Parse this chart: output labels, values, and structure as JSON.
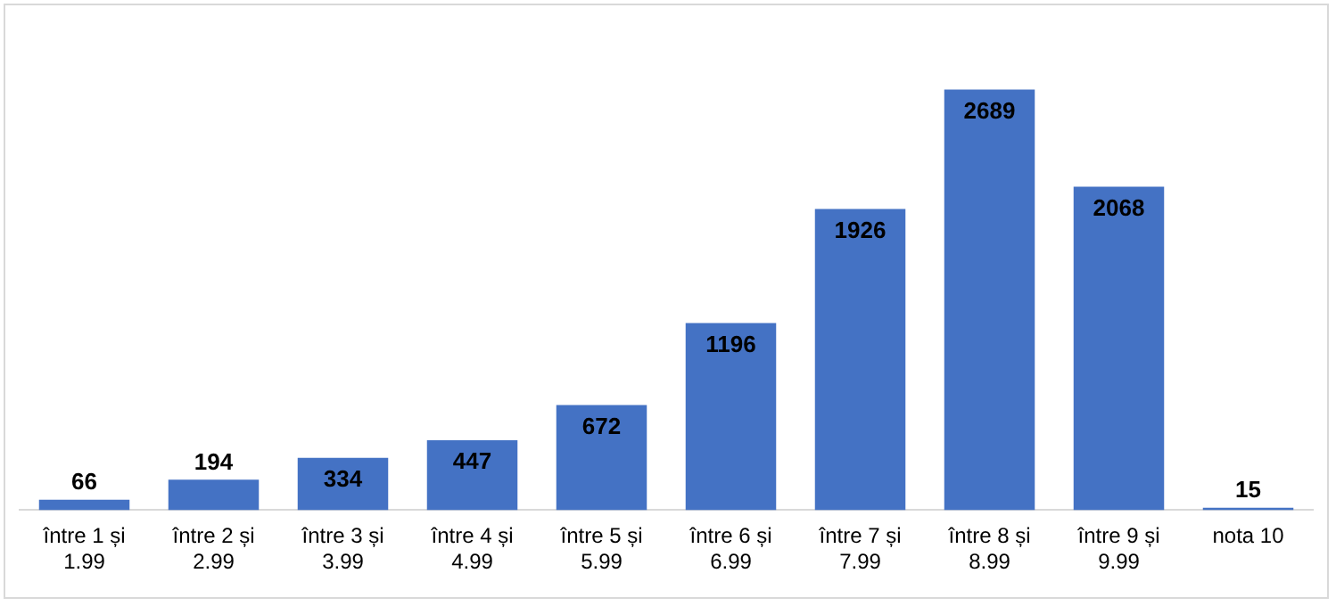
{
  "chart_data": {
    "type": "bar",
    "categories": [
      "între 1 și 1.99",
      "între 2 și 2.99",
      "între 3 și 3.99",
      "între 4 și 4.99",
      "între 5 și 5.99",
      "între 6 și 6.99",
      "între 7 și 7.99",
      "între 8 și 8.99",
      "între 9 și 9.99",
      "nota 10"
    ],
    "values": [
      66,
      194,
      334,
      447,
      672,
      1196,
      1926,
      2689,
      2068,
      15
    ],
    "color": "#4472c4",
    "data_labels": true,
    "grid": false,
    "legend": false
  }
}
